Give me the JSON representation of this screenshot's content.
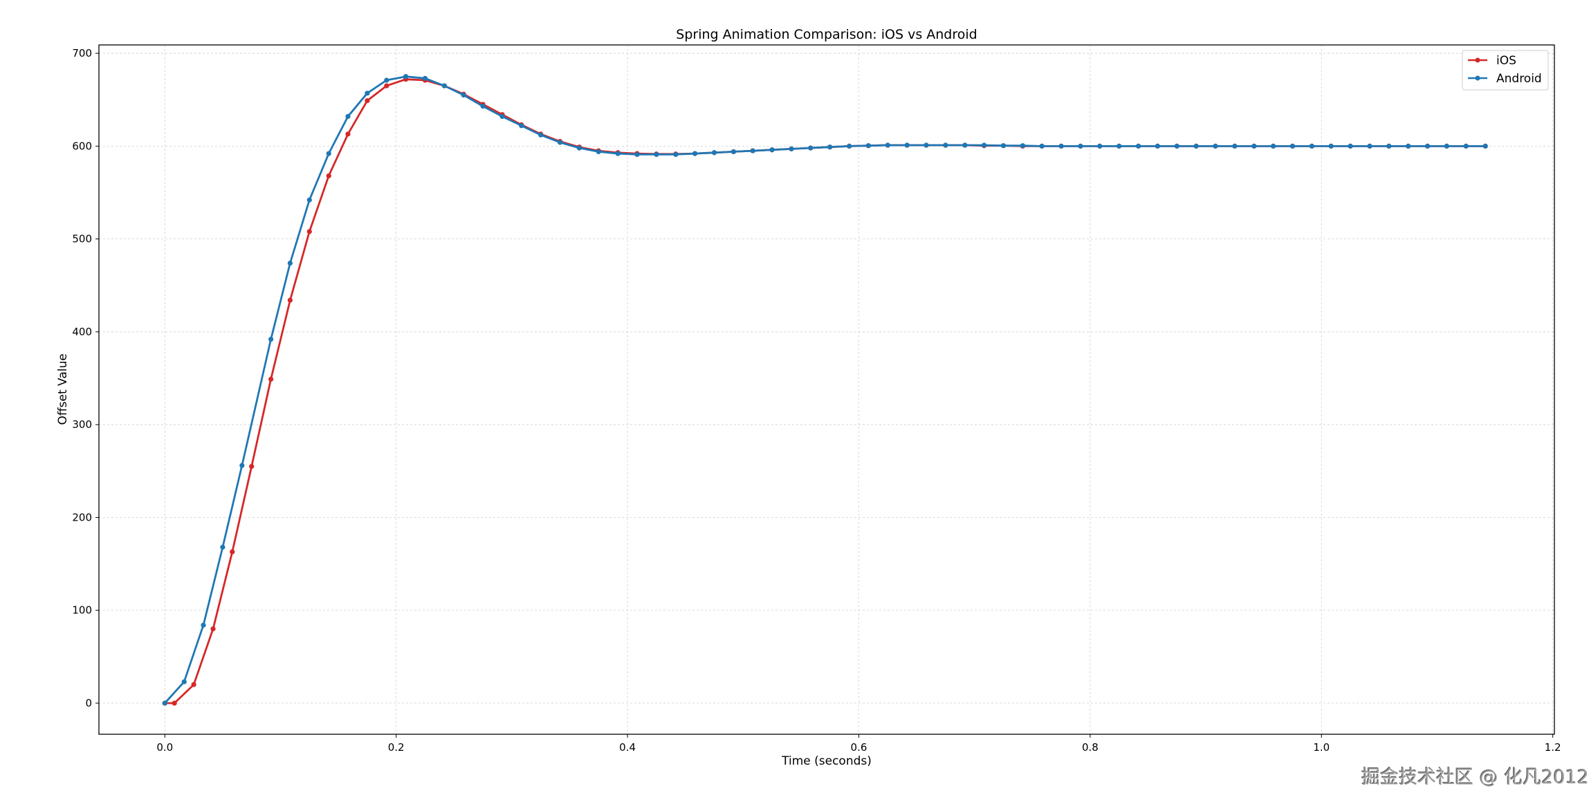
{
  "chart_data": {
    "type": "line",
    "title": "Spring Animation Comparison: iOS vs Android",
    "xlabel": "Time (seconds)",
    "ylabel": "Offset Value",
    "xlim": [
      -0.057,
      1.2014
    ],
    "ylim": [
      -33.5,
      709
    ],
    "xticks": [
      0.0,
      0.2,
      0.4,
      0.6,
      0.8,
      1.0,
      1.2
    ],
    "xtick_labels": [
      "0.0",
      "0.2",
      "0.4",
      "0.6",
      "0.8",
      "1.0",
      "1.2"
    ],
    "yticks": [
      0,
      100,
      200,
      300,
      400,
      500,
      600,
      700
    ],
    "ytick_labels": [
      "0",
      "100",
      "200",
      "300",
      "400",
      "500",
      "600",
      "700"
    ],
    "grid": true,
    "legend_position": "top-right",
    "series": [
      {
        "name": "iOS",
        "color": "#d62728",
        "x": [
          0,
          0.0083,
          0.025,
          0.0417,
          0.0583,
          0.075,
          0.0917,
          0.1083,
          0.125,
          0.1417,
          0.1583,
          0.175,
          0.1917,
          0.2083,
          0.225,
          0.2417,
          0.2583,
          0.275,
          0.2917,
          0.3083,
          0.325,
          0.3417,
          0.3583,
          0.375,
          0.3917,
          0.4083,
          0.425,
          0.4417,
          0.4583,
          0.475,
          0.4917,
          0.5083,
          0.525,
          0.5417,
          0.5583,
          0.575,
          0.5917,
          0.6083,
          0.625,
          0.6417,
          0.6583,
          0.675,
          0.6917,
          0.7083,
          0.725,
          0.7417,
          0.7583,
          0.775,
          0.7917,
          0.8083,
          0.825,
          0.8417,
          0.8583,
          0.875,
          0.8917,
          0.9083,
          0.925,
          0.9417,
          0.9583,
          0.975,
          0.9917,
          1.0083,
          1.025,
          1.0417,
          1.0583,
          1.075,
          1.0917,
          1.1083,
          1.125,
          1.1417
        ],
        "values": [
          0,
          0,
          20,
          80,
          163,
          255,
          349,
          434,
          508,
          568,
          613,
          649,
          665,
          672,
          671,
          665,
          656,
          645,
          634,
          623,
          613,
          605,
          599,
          595,
          593,
          592,
          591.5,
          591.5,
          592,
          593,
          594,
          595,
          596,
          597,
          598,
          599,
          600,
          600.5,
          601,
          601,
          601,
          601,
          601,
          600.5,
          600.5,
          600,
          600,
          600,
          600,
          600,
          600,
          600,
          600,
          600,
          600,
          600,
          600,
          600,
          600,
          600,
          600,
          600,
          600,
          600,
          600,
          600,
          600,
          600,
          600,
          600
        ]
      },
      {
        "name": "Android",
        "color": "#1f77b4",
        "x": [
          0,
          0.0167,
          0.0333,
          0.05,
          0.0667,
          0.0917,
          0.1083,
          0.125,
          0.1417,
          0.1583,
          0.175,
          0.1917,
          0.2083,
          0.225,
          0.2417,
          0.2583,
          0.275,
          0.2917,
          0.3083,
          0.325,
          0.3417,
          0.3583,
          0.375,
          0.3917,
          0.4083,
          0.425,
          0.4417,
          0.4583,
          0.475,
          0.4917,
          0.5083,
          0.525,
          0.5417,
          0.5583,
          0.575,
          0.5917,
          0.6083,
          0.625,
          0.6417,
          0.6583,
          0.675,
          0.6917,
          0.7083,
          0.725,
          0.7417,
          0.7583,
          0.775,
          0.7917,
          0.8083,
          0.825,
          0.8417,
          0.8583,
          0.875,
          0.8917,
          0.9083,
          0.925,
          0.9417,
          0.9583,
          0.975,
          0.9917,
          1.0083,
          1.025,
          1.0417,
          1.0583,
          1.075,
          1.0917,
          1.1083,
          1.125,
          1.1417
        ],
        "values": [
          0,
          23,
          84,
          168,
          256,
          392,
          474,
          542,
          592,
          632,
          657,
          671,
          675,
          673,
          665,
          655,
          643,
          632,
          622,
          612,
          604,
          598,
          594,
          592,
          591,
          591,
          591,
          592,
          593,
          594,
          595,
          596,
          597,
          598,
          599,
          600,
          600.5,
          601,
          601,
          601,
          601,
          601,
          601,
          600.5,
          600.5,
          600,
          600,
          600,
          600,
          600,
          600,
          600,
          600,
          600,
          600,
          600,
          600,
          600,
          600,
          600,
          600,
          600,
          600,
          600,
          600,
          600,
          600,
          600,
          600
        ]
      }
    ]
  },
  "watermark": "掘金技术社区 @ 化凡2012"
}
